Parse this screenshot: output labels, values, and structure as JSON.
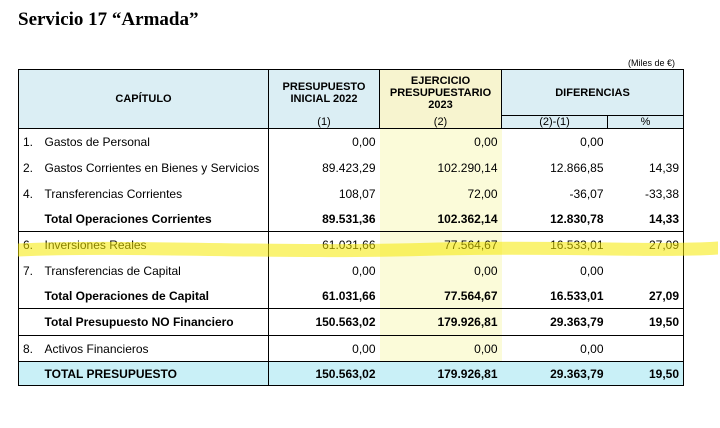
{
  "title": "Servicio 17 “Armada”",
  "units": "(Miles de €)",
  "header": {
    "capitulo": "CAPÍTULO",
    "presupuesto": "PRESUPUESTO INICIAL 2022",
    "presupuesto_sub": "(1)",
    "ejercicio": "EJERCICIO PRESUPUESTARIO 2023",
    "ejercicio_sub": "(2)",
    "diferencias": "DIFERENCIAS",
    "dif_sub": "(2)-(1)",
    "pct": "%"
  },
  "rows": [
    {
      "num": "1.",
      "label": "Gastos de Personal",
      "p": "0,00",
      "e": "0,00",
      "d": "0,00",
      "pct": ""
    },
    {
      "num": "2.",
      "label": "Gastos Corrientes en Bienes y Servicios",
      "p": "89.423,29",
      "e": "102.290,14",
      "d": "12.866,85",
      "pct": "14,39"
    },
    {
      "num": "4.",
      "label": "Transferencias Corrientes",
      "p": "108,07",
      "e": "72,00",
      "d": "-36,07",
      "pct": "-33,38"
    },
    {
      "num": "",
      "label": "Total Operaciones Corrientes",
      "p": "89.531,36",
      "e": "102.362,14",
      "d": "12.830,78",
      "pct": "14,33"
    },
    {
      "num": "6.",
      "label": "Inversiones Reales",
      "p": "61.031,66",
      "e": "77.564,67",
      "d": "16.533,01",
      "pct": "27,09"
    },
    {
      "num": "7.",
      "label": "Transferencias de Capital",
      "p": "0,00",
      "e": "0,00",
      "d": "0,00",
      "pct": ""
    },
    {
      "num": "",
      "label": "Total Operaciones de Capital",
      "p": "61.031,66",
      "e": "77.564,67",
      "d": "16.533,01",
      "pct": "27,09"
    },
    {
      "num": "",
      "label": "Total Presupuesto NO Financiero",
      "p": "150.563,02",
      "e": "179.926,81",
      "d": "29.363,79",
      "pct": "19,50"
    },
    {
      "num": "8.",
      "label": "Activos Financieros",
      "p": "0,00",
      "e": "0,00",
      "d": "0,00",
      "pct": ""
    },
    {
      "num": "",
      "label": "TOTAL PRESUPUESTO",
      "p": "150.563,02",
      "e": "179.926,81",
      "d": "29.363,79",
      "pct": "19,50"
    }
  ],
  "highlight_color": "#f5e900"
}
